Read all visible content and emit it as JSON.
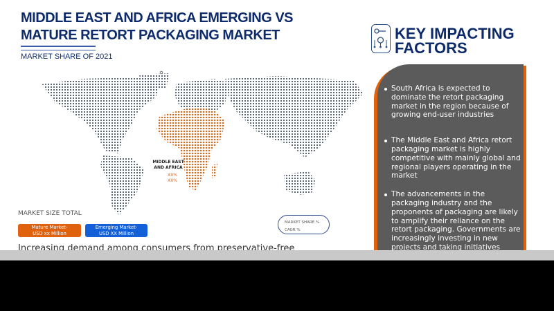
{
  "header": {
    "title": "MIDDLE EAST AND AFRICA EMERGING VS MATURE RETORT PACKAGING MARKET",
    "subtitle": "MARKET SHARE OF 2021"
  },
  "map": {
    "region_label": "MIDDLE EAST AND AFRICA",
    "share_value": "XX%",
    "cagr_value": "XX%",
    "highlight_color": "#e0620f",
    "base_color": "#4a5566"
  },
  "market_size": {
    "label": "MARKET SIZE TOTAL",
    "mature": "Mature Market-\nUSD xx Million",
    "emerging": "Emerging Market-\nUSD XX Million",
    "mature_color": "#e0620f",
    "emerging_color": "#1460d9"
  },
  "legend": {
    "share": "MARKET SHARE %",
    "cagr": "CAGR %"
  },
  "body_text": "Increasing demand among consumers from preservative-free",
  "factors": {
    "title": "KEY IMPACTING FACTORS",
    "icon": "key-gear-icon",
    "items": [
      "South Africa is expected to dominate the retort packaging market in the region because of growing end-user industries",
      "The Middle East and Africa retort packaging market is highly competitive with mainly global and regional players operating in the market",
      "The advancements in the packaging industry and the proponents of packaging are likely to amplify their reliance on the retort packaging. Governments are increasingly investing in new projects and taking initiatives toward innovative"
    ]
  }
}
